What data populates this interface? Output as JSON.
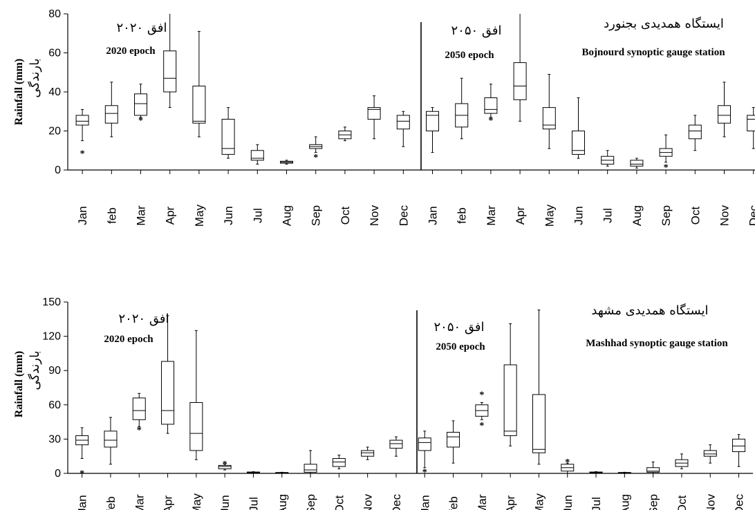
{
  "chart_data": [
    {
      "type": "box",
      "station": "Bojnourd",
      "ylabel_en": "Rainfall (mm)",
      "ylabel_fa": "بارندگی",
      "ylim": [
        0,
        80
      ],
      "yticks": [
        0,
        20,
        40,
        60,
        80
      ],
      "categories": [
        "Jan",
        "feb",
        "Mar",
        "Apr",
        "May",
        "Jun",
        "Jul",
        "Aug",
        "Sep",
        "Oct",
        "Nov",
        "Dec",
        "Jan",
        "feb",
        "Mar",
        "Apr",
        "May",
        "Jun",
        "Jul",
        "Aug",
        "Sep",
        "Oct",
        "Nov",
        "Dec"
      ],
      "panels": [
        {
          "title_fa": "افق ۲۰۲۰",
          "title_en": "2020 epoch",
          "station_fa": "",
          "station_en": "",
          "boxes": [
            {
              "min": 15,
              "q1": 23,
              "med": 25,
              "q3": 28,
              "max": 31,
              "outliers": [
                9
              ]
            },
            {
              "min": 17,
              "q1": 24,
              "med": 29,
              "q3": 33,
              "max": 45,
              "outliers": []
            },
            {
              "min": 27,
              "q1": 28,
              "med": 34,
              "q3": 39,
              "max": 44,
              "outliers": [
                26
              ]
            },
            {
              "min": 32,
              "q1": 40,
              "med": 47,
              "q3": 61,
              "max": 80,
              "outliers": []
            },
            {
              "min": 17,
              "q1": 24,
              "med": 25,
              "q3": 43,
              "max": 71,
              "outliers": []
            },
            {
              "min": 6,
              "q1": 8,
              "med": 11,
              "q3": 26,
              "max": 32,
              "outliers": []
            },
            {
              "min": 3,
              "q1": 5,
              "med": 6,
              "q3": 10,
              "max": 13,
              "outliers": []
            },
            {
              "min": 3,
              "q1": 3.5,
              "med": 4,
              "q3": 4.5,
              "max": 5,
              "outliers": []
            },
            {
              "min": 9,
              "q1": 11,
              "med": 12,
              "q3": 13,
              "max": 17,
              "outliers": [
                7
              ]
            },
            {
              "min": 15,
              "q1": 16,
              "med": 18,
              "q3": 20,
              "max": 22,
              "outliers": []
            },
            {
              "min": 16,
              "q1": 26,
              "med": 31,
              "q3": 32,
              "max": 38,
              "outliers": []
            },
            {
              "min": 12,
              "q1": 21,
              "med": 25,
              "q3": 28,
              "max": 30,
              "outliers": []
            }
          ]
        },
        {
          "title_fa": "افق ۲۰۵۰",
          "title_en": "2050  epoch",
          "station_fa": "ایستگاه همدیدی بجنورد",
          "station_en": "Bojnourd synoptic gauge station",
          "boxes": [
            {
              "min": 9,
              "q1": 20,
              "med": 28,
              "q3": 30,
              "max": 32,
              "outliers": []
            },
            {
              "min": 16,
              "q1": 22,
              "med": 28,
              "q3": 34,
              "max": 47,
              "outliers": []
            },
            {
              "min": 27,
              "q1": 29,
              "med": 31,
              "q3": 37,
              "max": 44,
              "outliers": [
                26
              ]
            },
            {
              "min": 25,
              "q1": 36,
              "med": 43,
              "q3": 55,
              "max": 80,
              "outliers": []
            },
            {
              "min": 11,
              "q1": 21,
              "med": 23,
              "q3": 32,
              "max": 49,
              "outliers": []
            },
            {
              "min": 6,
              "q1": 8,
              "med": 10,
              "q3": 20,
              "max": 37,
              "outliers": []
            },
            {
              "min": 2,
              "q1": 3,
              "med": 5,
              "q3": 7,
              "max": 10,
              "outliers": []
            },
            {
              "min": 1,
              "q1": 2,
              "med": 3,
              "q3": 5,
              "max": 6,
              "outliers": []
            },
            {
              "min": 4,
              "q1": 7,
              "med": 9,
              "q3": 11,
              "max": 18,
              "outliers": [
                2
              ]
            },
            {
              "min": 10,
              "q1": 16,
              "med": 20,
              "q3": 23,
              "max": 28,
              "outliers": []
            },
            {
              "min": 17,
              "q1": 24,
              "med": 28,
              "q3": 33,
              "max": 45,
              "outliers": []
            },
            {
              "min": 11,
              "q1": 20,
              "med": 26,
              "q3": 28,
              "max": 32,
              "outliers": []
            }
          ]
        }
      ]
    },
    {
      "type": "box",
      "station": "Mashhad",
      "ylabel_en": "Rainfall (mm)",
      "ylabel_fa": "بارندگی",
      "ylim": [
        0,
        150
      ],
      "yticks": [
        0,
        30,
        60,
        90,
        120,
        150
      ],
      "categories": [
        "Jan",
        "feb",
        "Mar",
        "Apr",
        "May",
        "Jun",
        "Jul",
        "Aug",
        "Sep",
        "Oct",
        "Nov",
        "Dec",
        "Jan",
        "feb",
        "Mar",
        "Apr",
        "May",
        "Jun",
        "Jul",
        "Aug",
        "Sep",
        "Oct",
        "Nov",
        "Dec"
      ],
      "panels": [
        {
          "title_fa": "افق ۲۰۲۰",
          "title_en": "2020 epoch",
          "station_fa": "",
          "station_en": "",
          "boxes": [
            {
              "min": 13,
              "q1": 25,
              "med": 29,
              "q3": 33,
              "max": 40,
              "outliers": [
                1
              ]
            },
            {
              "min": 8,
              "q1": 23,
              "med": 29,
              "q3": 37,
              "max": 49,
              "outliers": []
            },
            {
              "min": 41,
              "q1": 47,
              "med": 55,
              "q3": 66,
              "max": 70,
              "outliers": [
                39
              ]
            },
            {
              "min": 35,
              "q1": 43,
              "med": 55,
              "q3": 98,
              "max": 138,
              "outliers": []
            },
            {
              "min": 12,
              "q1": 20,
              "med": 35,
              "q3": 62,
              "max": 125,
              "outliers": []
            },
            {
              "min": 3,
              "q1": 4,
              "med": 6,
              "q3": 7,
              "max": 8,
              "outliers": [
                9
              ]
            },
            {
              "min": 0,
              "q1": 0.5,
              "med": 1,
              "q3": 1.2,
              "max": 1.5,
              "outliers": []
            },
            {
              "min": 0,
              "q1": 0.3,
              "med": 0.5,
              "q3": 0.8,
              "max": 1,
              "outliers": []
            },
            {
              "min": 0,
              "q1": 1,
              "med": 3,
              "q3": 8,
              "max": 20,
              "outliers": []
            },
            {
              "min": 4,
              "q1": 6,
              "med": 10,
              "q3": 13,
              "max": 16,
              "outliers": []
            },
            {
              "min": 12,
              "q1": 15,
              "med": 18,
              "q3": 20,
              "max": 23,
              "outliers": []
            },
            {
              "min": 15,
              "q1": 22,
              "med": 26,
              "q3": 29,
              "max": 32,
              "outliers": []
            }
          ]
        },
        {
          "title_fa": "افق ۲۰۵۰",
          "title_en": "2050  epoch",
          "station_fa": "ایستگاه همدیدی مشهد",
          "station_en": "Mashhad synoptic gauge station",
          "boxes": [
            {
              "min": 5,
              "q1": 20,
              "med": 27,
              "q3": 31,
              "max": 37,
              "outliers": [
                2
              ]
            },
            {
              "min": 9,
              "q1": 23,
              "med": 32,
              "q3": 36,
              "max": 46,
              "outliers": []
            },
            {
              "min": 47,
              "q1": 50,
              "med": 55,
              "q3": 60,
              "max": 62,
              "outliers": [
                43,
                70
              ]
            },
            {
              "min": 24,
              "q1": 33,
              "med": 37,
              "q3": 95,
              "max": 131,
              "outliers": []
            },
            {
              "min": 8,
              "q1": 18,
              "med": 21,
              "q3": 69,
              "max": 143,
              "outliers": []
            },
            {
              "min": 0,
              "q1": 2,
              "med": 5,
              "q3": 8,
              "max": 9,
              "outliers": [
                11
              ]
            },
            {
              "min": 0,
              "q1": 0.5,
              "med": 1,
              "q3": 1.2,
              "max": 1.5,
              "outliers": []
            },
            {
              "min": 0,
              "q1": 0.3,
              "med": 0.5,
              "q3": 0.8,
              "max": 1,
              "outliers": []
            },
            {
              "min": 0,
              "q1": 1,
              "med": 2,
              "q3": 5,
              "max": 10,
              "outliers": []
            },
            {
              "min": 4,
              "q1": 6,
              "med": 9,
              "q3": 12,
              "max": 17,
              "outliers": []
            },
            {
              "min": 9,
              "q1": 15,
              "med": 17,
              "q3": 20,
              "max": 25,
              "outliers": []
            },
            {
              "min": 6,
              "q1": 19,
              "med": 24,
              "q3": 30,
              "max": 34,
              "outliers": []
            }
          ]
        }
      ]
    }
  ]
}
